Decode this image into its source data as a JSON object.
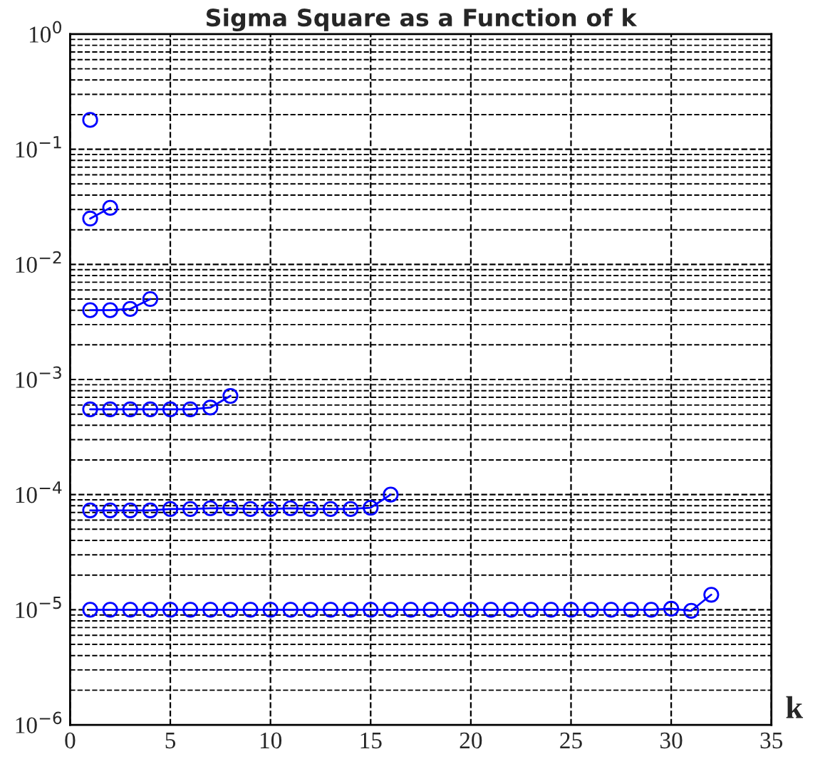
{
  "chart_data": {
    "type": "line",
    "title": "Sigma Square as a Function of k",
    "xlabel": "k",
    "log": "y",
    "grid": true,
    "marker": "circle",
    "line_style": "solid",
    "xlim": [
      0,
      35
    ],
    "xticks": [
      0,
      5,
      10,
      15,
      20,
      25,
      30,
      35
    ],
    "ylim": [
      1e-06,
      1
    ],
    "yticks": [
      {
        "value": 1e-06,
        "label": "10$^{−6}$"
      },
      {
        "value": 1e-05,
        "label": "10$^{−5}$"
      },
      {
        "value": 0.0001,
        "label": "10$^{−4}$"
      },
      {
        "value": 0.001,
        "label": "10$^{−3}$"
      },
      {
        "value": 0.01,
        "label": "10$^{−2}$"
      },
      {
        "value": 0.1,
        "label": "10$^{−1}$"
      },
      {
        "value": 1,
        "label": "10$^{0}$"
      }
    ],
    "series": [
      {
        "color": "#0000ff",
        "x": [
          1
        ],
        "values": [
          0.18
        ]
      },
      {
        "color": "#0000ff",
        "x": [
          1,
          2
        ],
        "values": [
          0.025,
          0.031
        ]
      },
      {
        "color": "#0000ff",
        "x": [
          1,
          2,
          3,
          4
        ],
        "values": [
          0.004,
          0.004,
          0.0041,
          0.005
        ]
      },
      {
        "color": "#0000ff",
        "x": [
          1,
          2,
          3,
          4,
          5,
          6,
          7,
          8
        ],
        "values": [
          0.00055,
          0.00055,
          0.00055,
          0.00055,
          0.00055,
          0.00055,
          0.00057,
          0.00072
        ]
      },
      {
        "color": "#0000ff",
        "x": [
          1,
          2,
          3,
          4,
          5,
          6,
          7,
          8,
          9,
          10,
          11,
          12,
          13,
          14,
          15,
          16
        ],
        "values": [
          7.3e-05,
          7.3e-05,
          7.3e-05,
          7.3e-05,
          7.5e-05,
          7.5e-05,
          7.6e-05,
          7.6e-05,
          7.5e-05,
          7.5e-05,
          7.6e-05,
          7.5e-05,
          7.5e-05,
          7.5e-05,
          7.7e-05,
          0.0001
        ]
      },
      {
        "color": "#0000ff",
        "x": [
          1,
          2,
          3,
          4,
          5,
          6,
          7,
          8,
          9,
          10,
          11,
          12,
          13,
          14,
          15,
          16,
          17,
          18,
          19,
          20,
          21,
          22,
          23,
          24,
          25,
          26,
          27,
          28,
          29,
          30,
          31,
          32
        ],
        "values": [
          1e-05,
          1e-05,
          1e-05,
          1e-05,
          1e-05,
          1e-05,
          1e-05,
          1e-05,
          1e-05,
          1e-05,
          1e-05,
          1e-05,
          1e-05,
          1e-05,
          1e-05,
          1e-05,
          1e-05,
          1e-05,
          1e-05,
          1e-05,
          1e-05,
          1e-05,
          1e-05,
          1e-05,
          1e-05,
          1e-05,
          1e-05,
          1e-05,
          1e-05,
          1.02e-05,
          9.8e-06,
          1.35e-05
        ]
      }
    ]
  }
}
